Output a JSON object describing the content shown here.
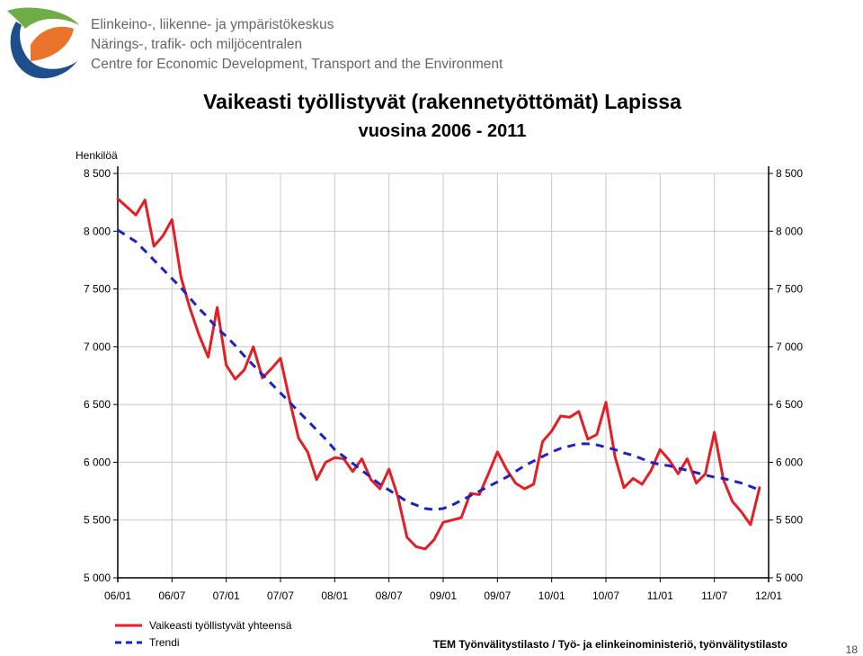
{
  "header": {
    "org_lines": [
      "Elinkeino-, liikenne- ja ympäristökeskus",
      "Närings-, trafik- och miljöcentralen",
      "Centre for Economic Development, Transport and the Environment"
    ],
    "colors": {
      "green": "#6fac46",
      "orange": "#e9742a",
      "blue": "#1f4e8c"
    }
  },
  "footer": {
    "page_number": "18"
  },
  "chart_data": {
    "type": "line",
    "title": "Vaikeasti työllistyvät (rakennetyöttömät) Lapissa",
    "subtitle": "vuosina 2006 - 2011",
    "ylabel": "Henkilöä",
    "xlabel": "",
    "ylim": [
      5000,
      8500
    ],
    "yticks": [
      5000,
      5500,
      6000,
      6500,
      7000,
      7500,
      8000,
      8500
    ],
    "ytick_labels": [
      "5 000",
      "5 500",
      "6 000",
      "6 500",
      "7 000",
      "7 500",
      "8 000",
      "8 500"
    ],
    "x_tick_labels": [
      "06/01",
      "06/07",
      "07/01",
      "07/07",
      "08/01",
      "08/07",
      "09/01",
      "09/07",
      "10/01",
      "10/07",
      "11/01",
      "11/07",
      "12/01"
    ],
    "grid": true,
    "legend": "bottom-left",
    "source": "TEM Työnvälitystilasto / Työ- ja elinkeinoministeriö, työnvälitystilasto",
    "series": [
      {
        "name": "Vaikeasti työllistyvät yhteensä",
        "color": "#e31e24",
        "style": "solid",
        "values": [
          8280,
          8210,
          8140,
          8270,
          7870,
          7960,
          8100,
          7600,
          7330,
          7100,
          6910,
          7340,
          6840,
          6720,
          6800,
          7000,
          6730,
          6810,
          6900,
          6540,
          6210,
          6090,
          5850,
          6000,
          6040,
          6030,
          5920,
          6030,
          5850,
          5770,
          5940,
          5700,
          5350,
          5270,
          5250,
          5330,
          5480,
          5500,
          5520,
          5730,
          5720,
          5900,
          6090,
          5940,
          5820,
          5770,
          5810,
          6180,
          6270,
          6400,
          6390,
          6440,
          6200,
          6240,
          6520,
          6050,
          5780,
          5860,
          5810,
          5930,
          6110,
          6020,
          5900,
          6030,
          5820,
          5900,
          6260,
          5850,
          5660,
          5570,
          5460,
          5780
        ]
      },
      {
        "name": "Trendi",
        "color": "#1a22c8",
        "style": "dashed",
        "values": [
          8010,
          7960,
          7910,
          7830,
          7750,
          7670,
          7590,
          7510,
          7420,
          7330,
          7250,
          7160,
          7090,
          7010,
          6920,
          6840,
          6760,
          6680,
          6600,
          6520,
          6440,
          6360,
          6280,
          6200,
          6110,
          6050,
          5990,
          5930,
          5870,
          5810,
          5760,
          5710,
          5660,
          5630,
          5600,
          5590,
          5600,
          5630,
          5670,
          5710,
          5750,
          5790,
          5830,
          5870,
          5920,
          5970,
          6010,
          6050,
          6090,
          6120,
          6140,
          6160,
          6160,
          6150,
          6130,
          6110,
          6080,
          6060,
          6030,
          6000,
          5980,
          5970,
          5950,
          5930,
          5910,
          5890,
          5870,
          5860,
          5840,
          5820,
          5790,
          5760
        ]
      }
    ]
  }
}
